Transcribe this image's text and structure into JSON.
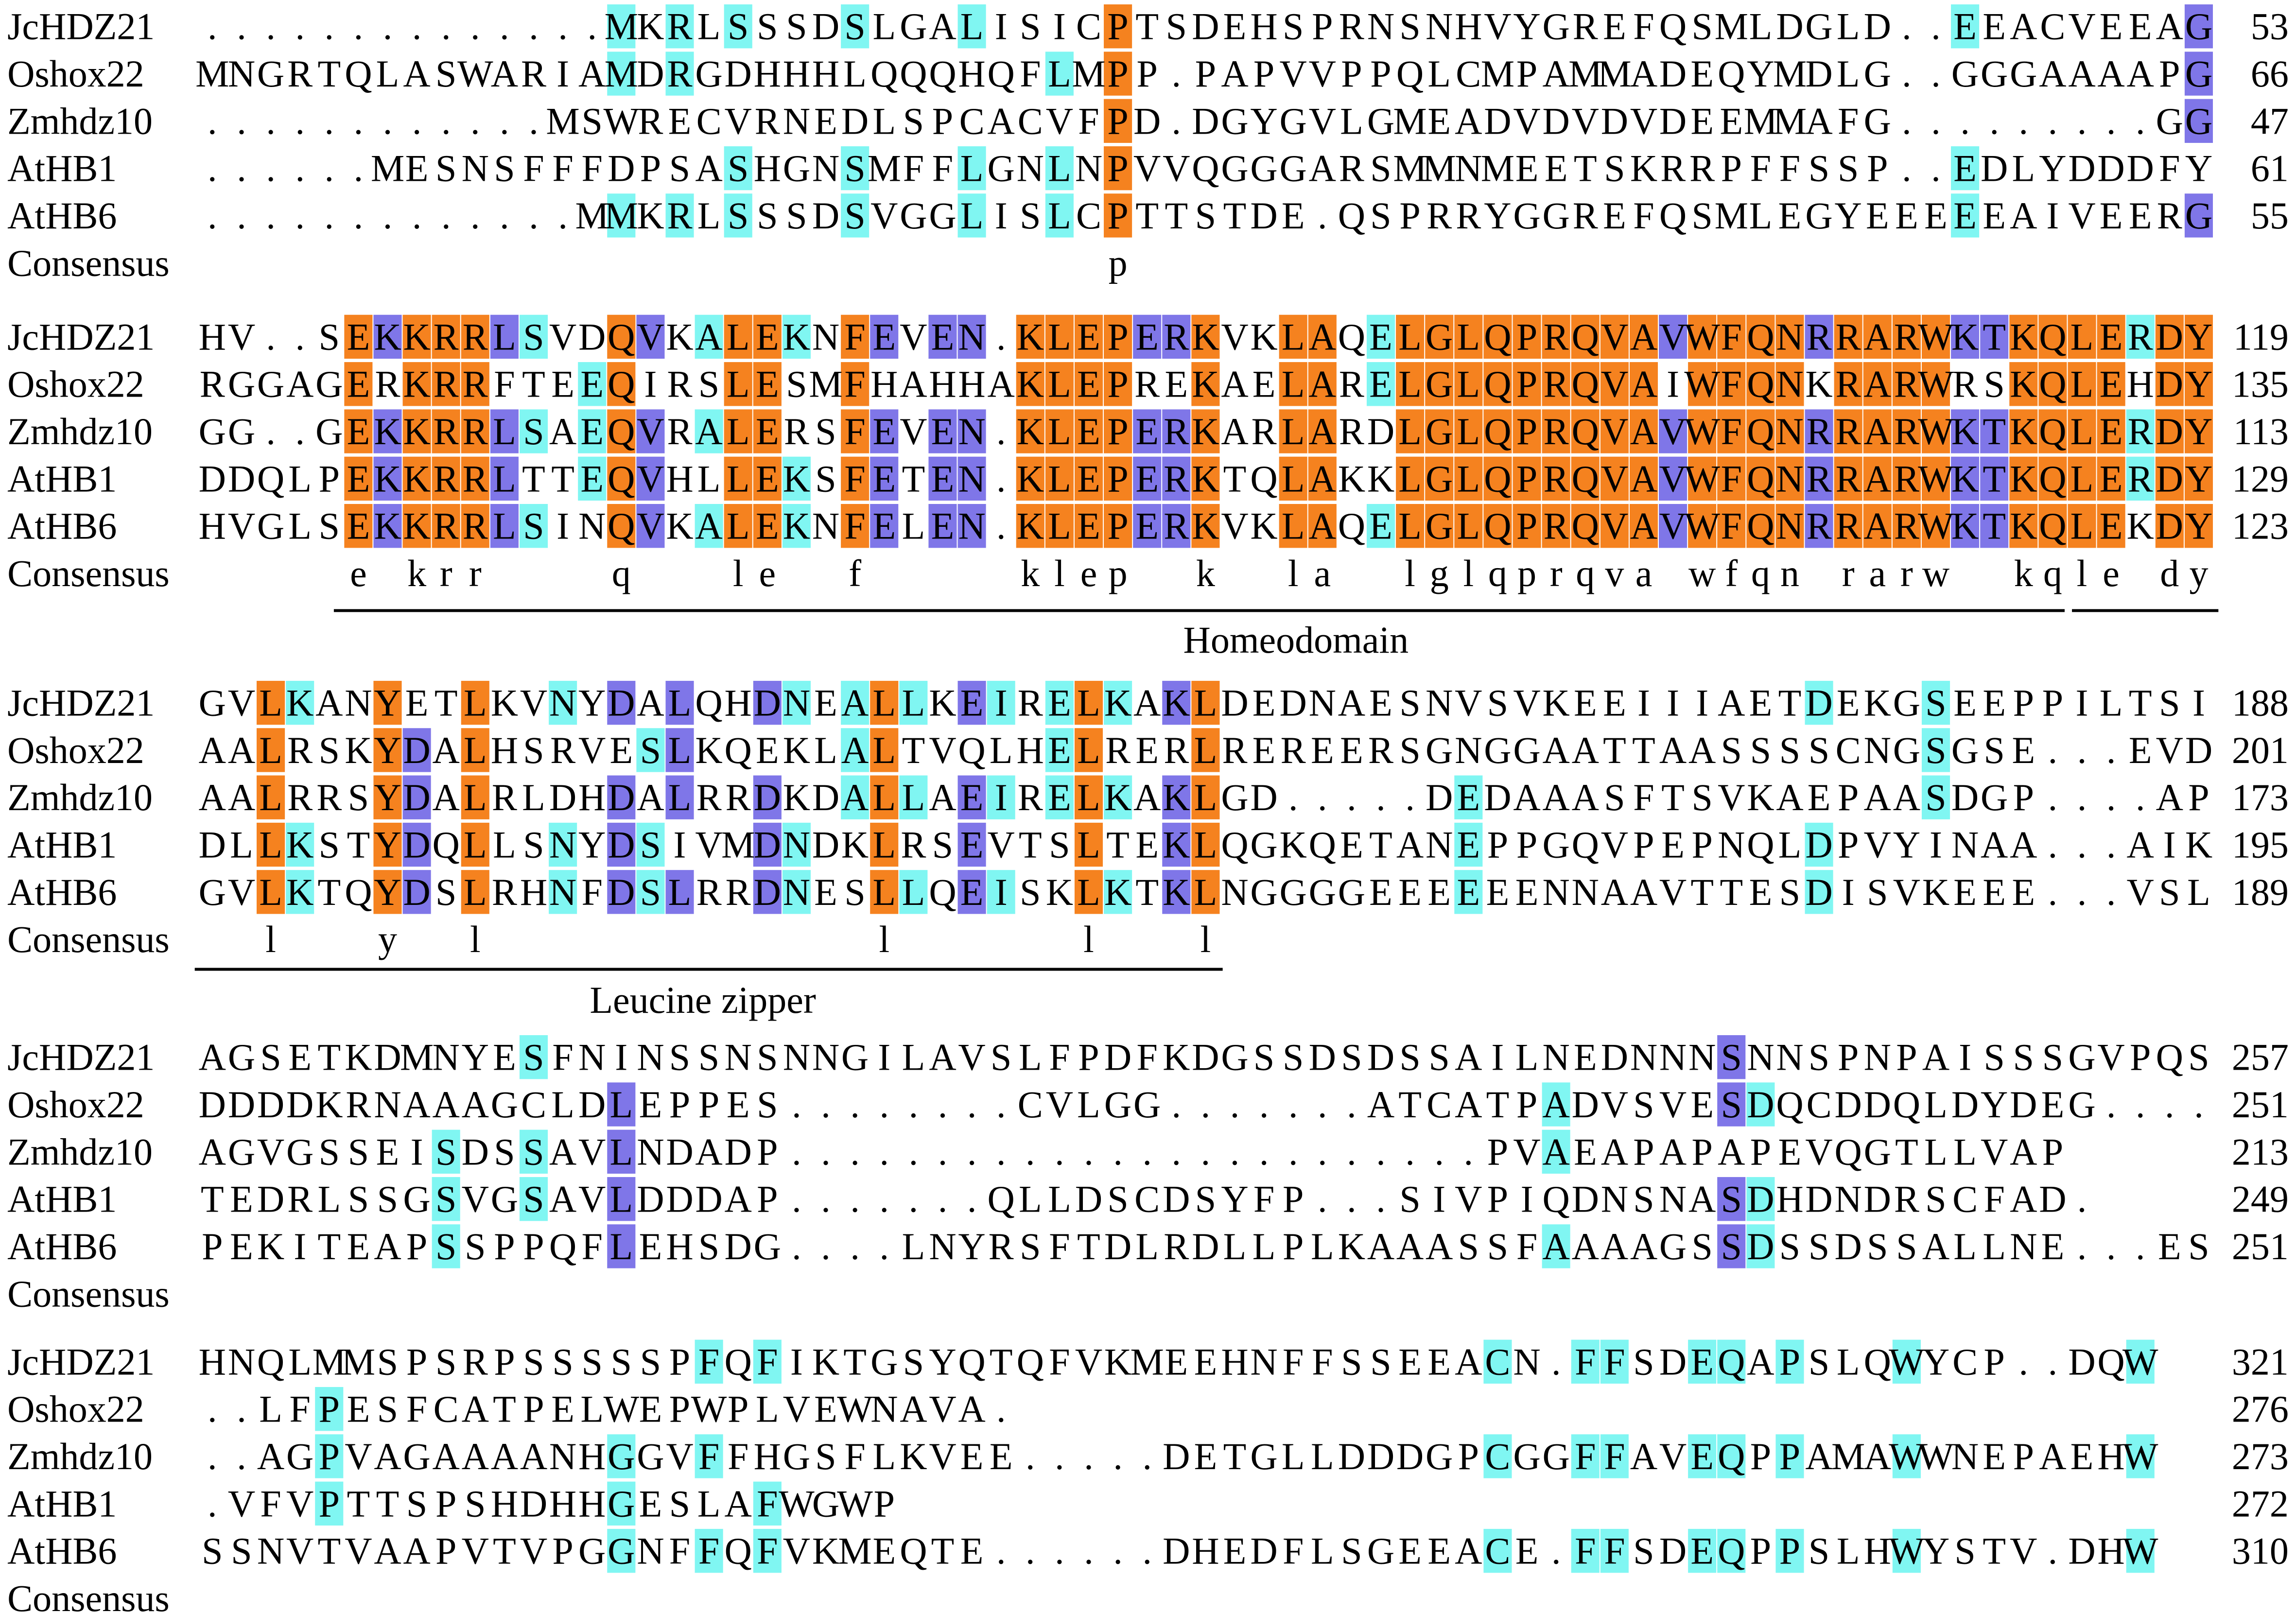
{
  "blocks": [
    {
      "rows": [
        {
          "name": "JcHDZ21",
          "sequence": "..............MKRLSSSDSLGALISICPTSDEHSPRNSNHVYGREFQSMLDGLD..EEACVEEAG",
          "end": 53
        },
        {
          "name": "Oshox22",
          "sequence": "MNGRTQLASWARIAMDRGDHHHLQQQHQFLMPP.PAPVVPPQLCMPAMMADEQYMDLG..GGGAAAAPG",
          "end": 66
        },
        {
          "name": "Zmhdz10",
          "sequence": "............MSWRECVRNEDLSPCACVFPD.DGYGVLGMEADVDVDVDEEMMAFG.........GG",
          "end": 47
        },
        {
          "name": "AtHB1",
          "sequence": "......MESNSFFFDPSASHGNSMFFLGNLNPVVQGGGARSMMNMEETSKRRPFFSSP..EDLYDDDFY",
          "end": 61
        },
        {
          "name": "AtHB6",
          "sequence": ".............MMKRLSSSDSVGGLISLCPTTSTDE.QSPRRYGGREFQSMLEGYEEEEEAIVEERG",
          "end": 55
        }
      ],
      "consensus_label": "Consensus",
      "consensus": "                               p"
    },
    {
      "rows": [
        {
          "name": "JcHDZ21",
          "sequence": "HV..SEKKRRLSVDQVKALEKNFEVEN.KLEPERKVKLAQELGLQPRQVAVWFQNRRARWKTKQLERDY",
          "end": 119
        },
        {
          "name": "Oshox22",
          "sequence": "RGGAGERKRRFTEEQIRSLESMFHAHHAKLEPREKAELARELGLQPRQVAIWFQNKRARWRSKQLEHDY",
          "end": 135
        },
        {
          "name": "Zmhdz10",
          "sequence": "GG..GEKKRRLSAEQVRALERSFEVEN.KLEPERKARLARDLGLQPRQVAVWFQNRRARWKTKQLERDY",
          "end": 113
        },
        {
          "name": "AtHB1",
          "sequence": "DDQLPEKKRRLTTEQVHLLEKSFETEN.KLEPERKTQLAKKLGLQPRQVAVWFQNRRARWKTKQLERDY",
          "end": 129
        },
        {
          "name": "AtHB6",
          "sequence": "HVGLSEKKRRLSINQVKALEKNFELEN.KLEPERKVKLAQELGLQPRQVAVWFQNRRARWKTKQLEKDY",
          "end": 123
        }
      ],
      "consensus_label": "Consensus",
      "consensus": "     e krr    q   le  f     klep  k  la  lglqprqva wfqn rarw  kqle dy",
      "domains": [
        {
          "label": "Homeodomain"
        }
      ]
    },
    {
      "rows": [
        {
          "name": "JcHDZ21",
          "sequence": "GVLKANYETLKVNYDALQHDNEALLKEIRELKAKLDEDNAESNVSVKEEIIIAETDEKGSEEPPILTSI",
          "end": 188
        },
        {
          "name": "Oshox22",
          "sequence": "AALRSKYDALHSRVESLKQEKLALTVQLHELRERLREREERSGNGGAATTAASSSSCNGSGSE...EVD",
          "end": 201
        },
        {
          "name": "Zmhdz10",
          "sequence": "AALRRSYDALRLDHDALRRDKDALLAEIRELKAKLGD.....DEDAAASFTSVKAEPAASDGP....AP",
          "end": 173
        },
        {
          "name": "AtHB1",
          "sequence": "DLLKSTYDQLLSNYDSIVMDNDKLRSEVTSLTEKLQGKQETANEPPGQVPEPNQLDPVYINAA...AIK",
          "end": 195
        },
        {
          "name": "AtHB6",
          "sequence": "GVLKTQYDSLRHNFDSLRRDNESLLQEISKLKTKLNGGGGEEEEEENNAAVTTESDISVKEEE...VSL",
          "end": 189
        }
      ],
      "consensus_label": "Consensus",
      "consensus": "  l   y  l             l      l   l",
      "domains": [
        {
          "label": "Leucine zipper"
        }
      ]
    },
    {
      "rows": [
        {
          "name": "JcHDZ21",
          "sequence": "AGSETKDMNYESFNINSSNSNNGILAVSLFPDFKDGSSDSDSSAILNEDNNNSNNSPNPAISSSGVPQS",
          "end": 257
        },
        {
          "name": "Oshox22",
          "sequence": "DDDDKRNAAAGCLDLEPPES........CVLGG.......ATCATPADVSVESDQCDDQLDYDEG....",
          "end": 251
        },
        {
          "name": "Zmhdz10",
          "sequence": "AGVGSSEISDSSAVLNDADP........................PVAEAPAPAPEVQGTLLVAP",
          "end": 213
        },
        {
          "name": "AtHB1",
          "sequence": "TEDRLSSGSVGSAVLDDDAP.......QLLDSCDSYFP...SIVPIQDNSNASDHDNDRSCFAD.",
          "end": 249
        },
        {
          "name": "AtHB6",
          "sequence": "PEKITEAPSSPPQFLEHSDG....LNYRSFTDLRDLLPLKAAASSFAAAAGSSDSSDSSALLNE...ES",
          "end": 251
        }
      ],
      "consensus_label": "Consensus"
    },
    {
      "rows": [
        {
          "name": "JcHDZ21",
          "sequence": "HNQLMMSPSRPSSSSSPFQFIKTGSYQTQFVKMEEHNFFSSEEACN.FFSDEQAPSLQWYCP..DQW",
          "end": 321
        },
        {
          "name": "Oshox22",
          "sequence": "..LFPESFCATPELWEPWPLVEWNAVA.",
          "end": 276
        },
        {
          "name": "Zmhdz10",
          "sequence": "..AGPVAGAAAANHGGVFFHGSFLKVEE.....DETGLLDDDGPCGGFFAVEQPPAMAWWNEPAEHW",
          "end": 273
        },
        {
          "name": "AtHB1",
          "sequence": ".VFVPTTSPSHDHHGESLAFWGWP",
          "end": 272
        },
        {
          "name": "AtHB6",
          "sequence": "SSNVTVAAPVTVPGGNFFQFVKMEQTE......DHEDFLSGEEACE.FFSDEQPPSLHWYSTV.DHW",
          "end": 310
        }
      ],
      "consensus_label": "Consensus"
    }
  ]
}
